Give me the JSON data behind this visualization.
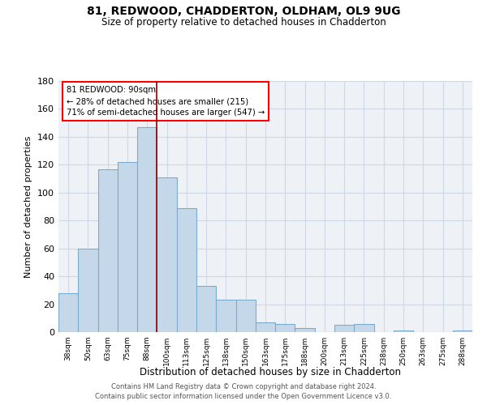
{
  "title": "81, REDWOOD, CHADDERTON, OLDHAM, OL9 9UG",
  "subtitle": "Size of property relative to detached houses in Chadderton",
  "xlabel": "Distribution of detached houses by size in Chadderton",
  "ylabel": "Number of detached properties",
  "bar_labels": [
    "38sqm",
    "50sqm",
    "63sqm",
    "75sqm",
    "88sqm",
    "100sqm",
    "113sqm",
    "125sqm",
    "138sqm",
    "150sqm",
    "163sqm",
    "175sqm",
    "188sqm",
    "200sqm",
    "213sqm",
    "225sqm",
    "238sqm",
    "250sqm",
    "263sqm",
    "275sqm",
    "288sqm"
  ],
  "bar_values": [
    28,
    60,
    117,
    122,
    147,
    111,
    89,
    33,
    23,
    23,
    7,
    6,
    3,
    0,
    5,
    6,
    0,
    1,
    0,
    0,
    1
  ],
  "bar_color": "#c5d8ea",
  "bar_edge_color": "#7aaccd",
  "redline_x": 5,
  "annotation_line1": "81 REDWOOD: 90sqm",
  "annotation_line2": "← 28% of detached houses are smaller (215)",
  "annotation_line3": "71% of semi-detached houses are larger (547) →",
  "ylim": [
    0,
    180
  ],
  "yticks": [
    0,
    20,
    40,
    60,
    80,
    100,
    120,
    140,
    160,
    180
  ],
  "background_color": "#eef2f7",
  "grid_color": "#d0d8e4",
  "footer_line1": "Contains HM Land Registry data © Crown copyright and database right 2024.",
  "footer_line2": "Contains public sector information licensed under the Open Government Licence v3.0."
}
